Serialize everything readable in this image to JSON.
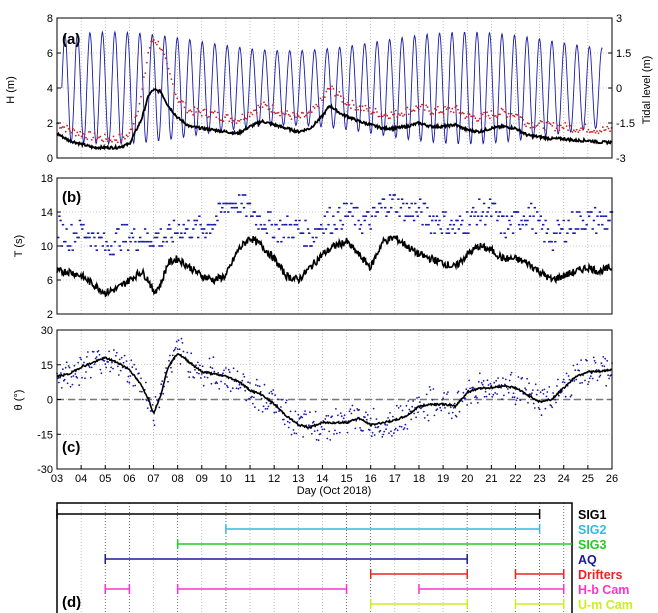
{
  "chart_data": [
    {
      "panel": "(a)",
      "type": "line",
      "ylabel": "H (m)",
      "ylabel_right": "Tidal level (m)",
      "ylim": [
        0,
        8
      ],
      "yticks": [
        "0",
        "2",
        "4",
        "6",
        "8"
      ],
      "ylim_right": [
        -3,
        3
      ],
      "yticks_right": [
        "-3",
        "-1.5",
        "0",
        "1.5",
        "3"
      ],
      "xlim": [
        3,
        26
      ],
      "grid": true,
      "series": [
        {
          "color": "#000000",
          "style": "thick-line",
          "x": [
            3,
            3.5,
            4,
            4.5,
            5,
            5.5,
            6,
            6.5,
            6.8,
            7,
            7.3,
            7.6,
            8,
            8.5,
            9,
            9.5,
            10,
            10.5,
            11,
            11.5,
            12,
            12.5,
            13,
            13.5,
            14,
            14.3,
            14.5,
            14.8,
            15,
            15.5,
            16,
            16.5,
            17,
            17.5,
            18,
            18.5,
            19,
            19.5,
            20,
            20.5,
            21,
            21.5,
            22,
            22.5,
            23,
            23.5,
            24,
            24.5,
            25,
            25.5,
            26
          ],
          "values": [
            1.4,
            1.0,
            0.8,
            0.6,
            0.6,
            0.6,
            0.8,
            2.2,
            3.6,
            3.9,
            3.8,
            3.0,
            2.3,
            1.8,
            1.7,
            1.6,
            1.5,
            1.4,
            1.8,
            2.1,
            1.9,
            1.7,
            1.5,
            1.7,
            2.4,
            3.0,
            2.8,
            2.5,
            2.4,
            2.1,
            1.9,
            1.7,
            1.7,
            1.8,
            2.0,
            1.8,
            1.8,
            1.9,
            1.6,
            1.5,
            1.7,
            1.8,
            1.7,
            1.3,
            1.2,
            1.1,
            1.1,
            1.0,
            1.0,
            0.9,
            0.9
          ]
        },
        {
          "color": "#cc2222",
          "style": "dots",
          "x": [
            3,
            3.5,
            4,
            4.5,
            5,
            5.5,
            6,
            6.5,
            6.8,
            7,
            7.3,
            7.6,
            8,
            8.5,
            9,
            9.5,
            10,
            10.5,
            11,
            11.5,
            12,
            12.5,
            13,
            13.5,
            14,
            14.3,
            14.5,
            14.8,
            15,
            15.5,
            16,
            16.5,
            17,
            17.5,
            18,
            18.5,
            19,
            19.5,
            20,
            20.5,
            21,
            21.5,
            22,
            22.5,
            23,
            23.5,
            24,
            24.5,
            25,
            25.5,
            26
          ],
          "values": [
            2.0,
            1.6,
            1.4,
            1.2,
            1.1,
            1.1,
            1.3,
            3.5,
            6.2,
            6.8,
            6.4,
            5.0,
            3.4,
            2.7,
            2.6,
            2.5,
            2.3,
            2.2,
            2.6,
            3.0,
            2.8,
            2.5,
            2.3,
            2.5,
            3.3,
            4.0,
            3.8,
            3.4,
            3.2,
            2.9,
            2.7,
            2.5,
            2.5,
            2.7,
            2.9,
            2.7,
            2.7,
            2.8,
            2.4,
            2.3,
            2.5,
            2.6,
            2.5,
            2.0,
            1.9,
            1.8,
            1.8,
            1.7,
            1.7,
            1.6,
            1.6
          ]
        },
        {
          "color": "#1a1aaa",
          "style": "tide",
          "axis": "right",
          "period_days": 0.5175,
          "amplitude": [
            1.6,
            2.4
          ]
        }
      ]
    },
    {
      "panel": "(b)",
      "type": "line",
      "ylabel": "T (s)",
      "ylim": [
        2,
        18
      ],
      "yticks": [
        "2",
        "6",
        "10",
        "14",
        "18"
      ],
      "xlim": [
        3,
        26
      ],
      "grid": true,
      "series": [
        {
          "color": "#000000",
          "style": "thick-line",
          "x": [
            3,
            3.5,
            4,
            4.5,
            5,
            5.5,
            6,
            6.5,
            6.8,
            7,
            7.3,
            7.6,
            8,
            8.5,
            9,
            9.5,
            10,
            10.5,
            11,
            11.5,
            12,
            12.5,
            13,
            13.5,
            14,
            14.5,
            15,
            15.5,
            16,
            16.5,
            17,
            17.5,
            18,
            18.5,
            19,
            19.5,
            20,
            20.5,
            21,
            21.5,
            22,
            22.5,
            23,
            23.5,
            24,
            24.5,
            25,
            25.5,
            26
          ],
          "values": [
            7.0,
            7.0,
            6.5,
            5.5,
            4.5,
            5.0,
            6.0,
            7.0,
            6.0,
            4.5,
            5.5,
            8.0,
            8.5,
            7.5,
            6.5,
            6.0,
            6.5,
            9.5,
            11.0,
            10.0,
            8.5,
            6.5,
            6.0,
            7.5,
            9.0,
            10.0,
            10.5,
            9.0,
            7.5,
            10.5,
            11.0,
            10.0,
            9.0,
            8.5,
            8.0,
            7.5,
            9.0,
            10.0,
            9.5,
            8.5,
            8.5,
            8.0,
            7.0,
            6.0,
            6.5,
            7.0,
            7.5,
            7.0,
            7.5
          ]
        },
        {
          "color": "#1a1aaa",
          "style": "dots",
          "x": [
            3,
            3.5,
            4,
            4.5,
            5,
            5.5,
            6,
            6.5,
            7,
            7.5,
            8,
            8.5,
            9,
            9.5,
            10,
            10.5,
            11,
            11.5,
            12,
            12.5,
            13,
            13.5,
            14,
            14.5,
            15,
            15.5,
            16,
            16.5,
            17,
            17.5,
            18,
            18.5,
            19,
            19.5,
            20,
            20.5,
            21,
            21.5,
            22,
            22.5,
            23,
            23.5,
            24,
            24.5,
            25,
            25.5,
            26
          ],
          "values": [
            12,
            11,
            12,
            11,
            10,
            11,
            11,
            11,
            11,
            11,
            12,
            12,
            12,
            13,
            15,
            15,
            14,
            13,
            12,
            12,
            12,
            11,
            13,
            13,
            14,
            13,
            13,
            15,
            15,
            14,
            14,
            13,
            13,
            12,
            13,
            14,
            14,
            12,
            13,
            14,
            12,
            11,
            12,
            13,
            13,
            13,
            13
          ]
        }
      ]
    },
    {
      "panel": "(c)",
      "type": "line",
      "ylabel": "θ (°)",
      "xlabel": "Day (Oct 2018)",
      "ylim": [
        -30,
        30
      ],
      "yticks": [
        "-30",
        "-15",
        "0",
        "15",
        "30"
      ],
      "xlim": [
        3,
        26
      ],
      "xticks": [
        "03",
        "04",
        "05",
        "06",
        "07",
        "08",
        "09",
        "10",
        "11",
        "12",
        "13",
        "14",
        "15",
        "16",
        "17",
        "18",
        "19",
        "20",
        "21",
        "22",
        "23",
        "24",
        "25",
        "26"
      ],
      "grid": true,
      "zero_line": true,
      "series": [
        {
          "color": "#000000",
          "style": "thick-line",
          "x": [
            3,
            3.5,
            4,
            4.5,
            5,
            5.5,
            6,
            6.5,
            6.8,
            7,
            7.3,
            7.6,
            8,
            8.5,
            9,
            9.5,
            10,
            10.5,
            11,
            11.5,
            12,
            12.5,
            13,
            13.5,
            14,
            14.5,
            15,
            15.5,
            16,
            16.5,
            17,
            17.5,
            18,
            18.5,
            19,
            19.5,
            20,
            20.5,
            21,
            21.5,
            22,
            22.5,
            23,
            23.5,
            24,
            24.5,
            25,
            25.5,
            26
          ],
          "values": [
            10,
            11,
            14,
            16,
            18,
            16,
            13,
            6,
            0,
            -6,
            2,
            14,
            20,
            16,
            12,
            11,
            10,
            8,
            4,
            2,
            -2,
            -7,
            -11,
            -12,
            -10,
            -10,
            -10,
            -8,
            -11,
            -10,
            -9,
            -7,
            -3,
            -2,
            -2,
            -3,
            3,
            5,
            5,
            6,
            5,
            2,
            -1,
            0,
            5,
            10,
            12,
            12,
            13
          ]
        },
        {
          "color": "#1a1aaa",
          "style": "scatter",
          "spread": 4
        }
      ]
    },
    {
      "panel": "(d)",
      "type": "timeline",
      "xlim": [
        3,
        26
      ],
      "rows": [
        {
          "name": "SIG1",
          "color": "#000000",
          "segments": [
            [
              3,
              23
            ]
          ]
        },
        {
          "name": "SIG2",
          "color": "#33bbdd",
          "segments": [
            [
              10,
              23
            ]
          ]
        },
        {
          "name": "SIG3",
          "color": "#22cc22",
          "segments": [
            [
              8,
              26
            ]
          ]
        },
        {
          "name": "AQ",
          "color": "#1a1a99",
          "segments": [
            [
              5,
              20
            ]
          ]
        },
        {
          "name": "Drifters",
          "color": "#ee2222",
          "segments": [
            [
              16,
              20
            ],
            [
              22,
              24
            ]
          ]
        },
        {
          "name": "H-b Cam",
          "color": "#ff33cc",
          "segments": [
            [
              5,
              6
            ],
            [
              8,
              15
            ],
            [
              18,
              24
            ]
          ]
        },
        {
          "name": "U-m Cam",
          "color": "#ccee22",
          "segments": [
            [
              16,
              20
            ],
            [
              22,
              24
            ]
          ]
        }
      ]
    }
  ],
  "labels": {
    "a": "(a)",
    "b": "(b)",
    "c": "(c)",
    "d": "(d)",
    "ylabel_a": "H (m)",
    "ylabel_a_right": "Tidal level (m)",
    "ylabel_b": "T (s)",
    "ylabel_c": "θ (°)",
    "xlabel": "Day (Oct 2018)"
  }
}
